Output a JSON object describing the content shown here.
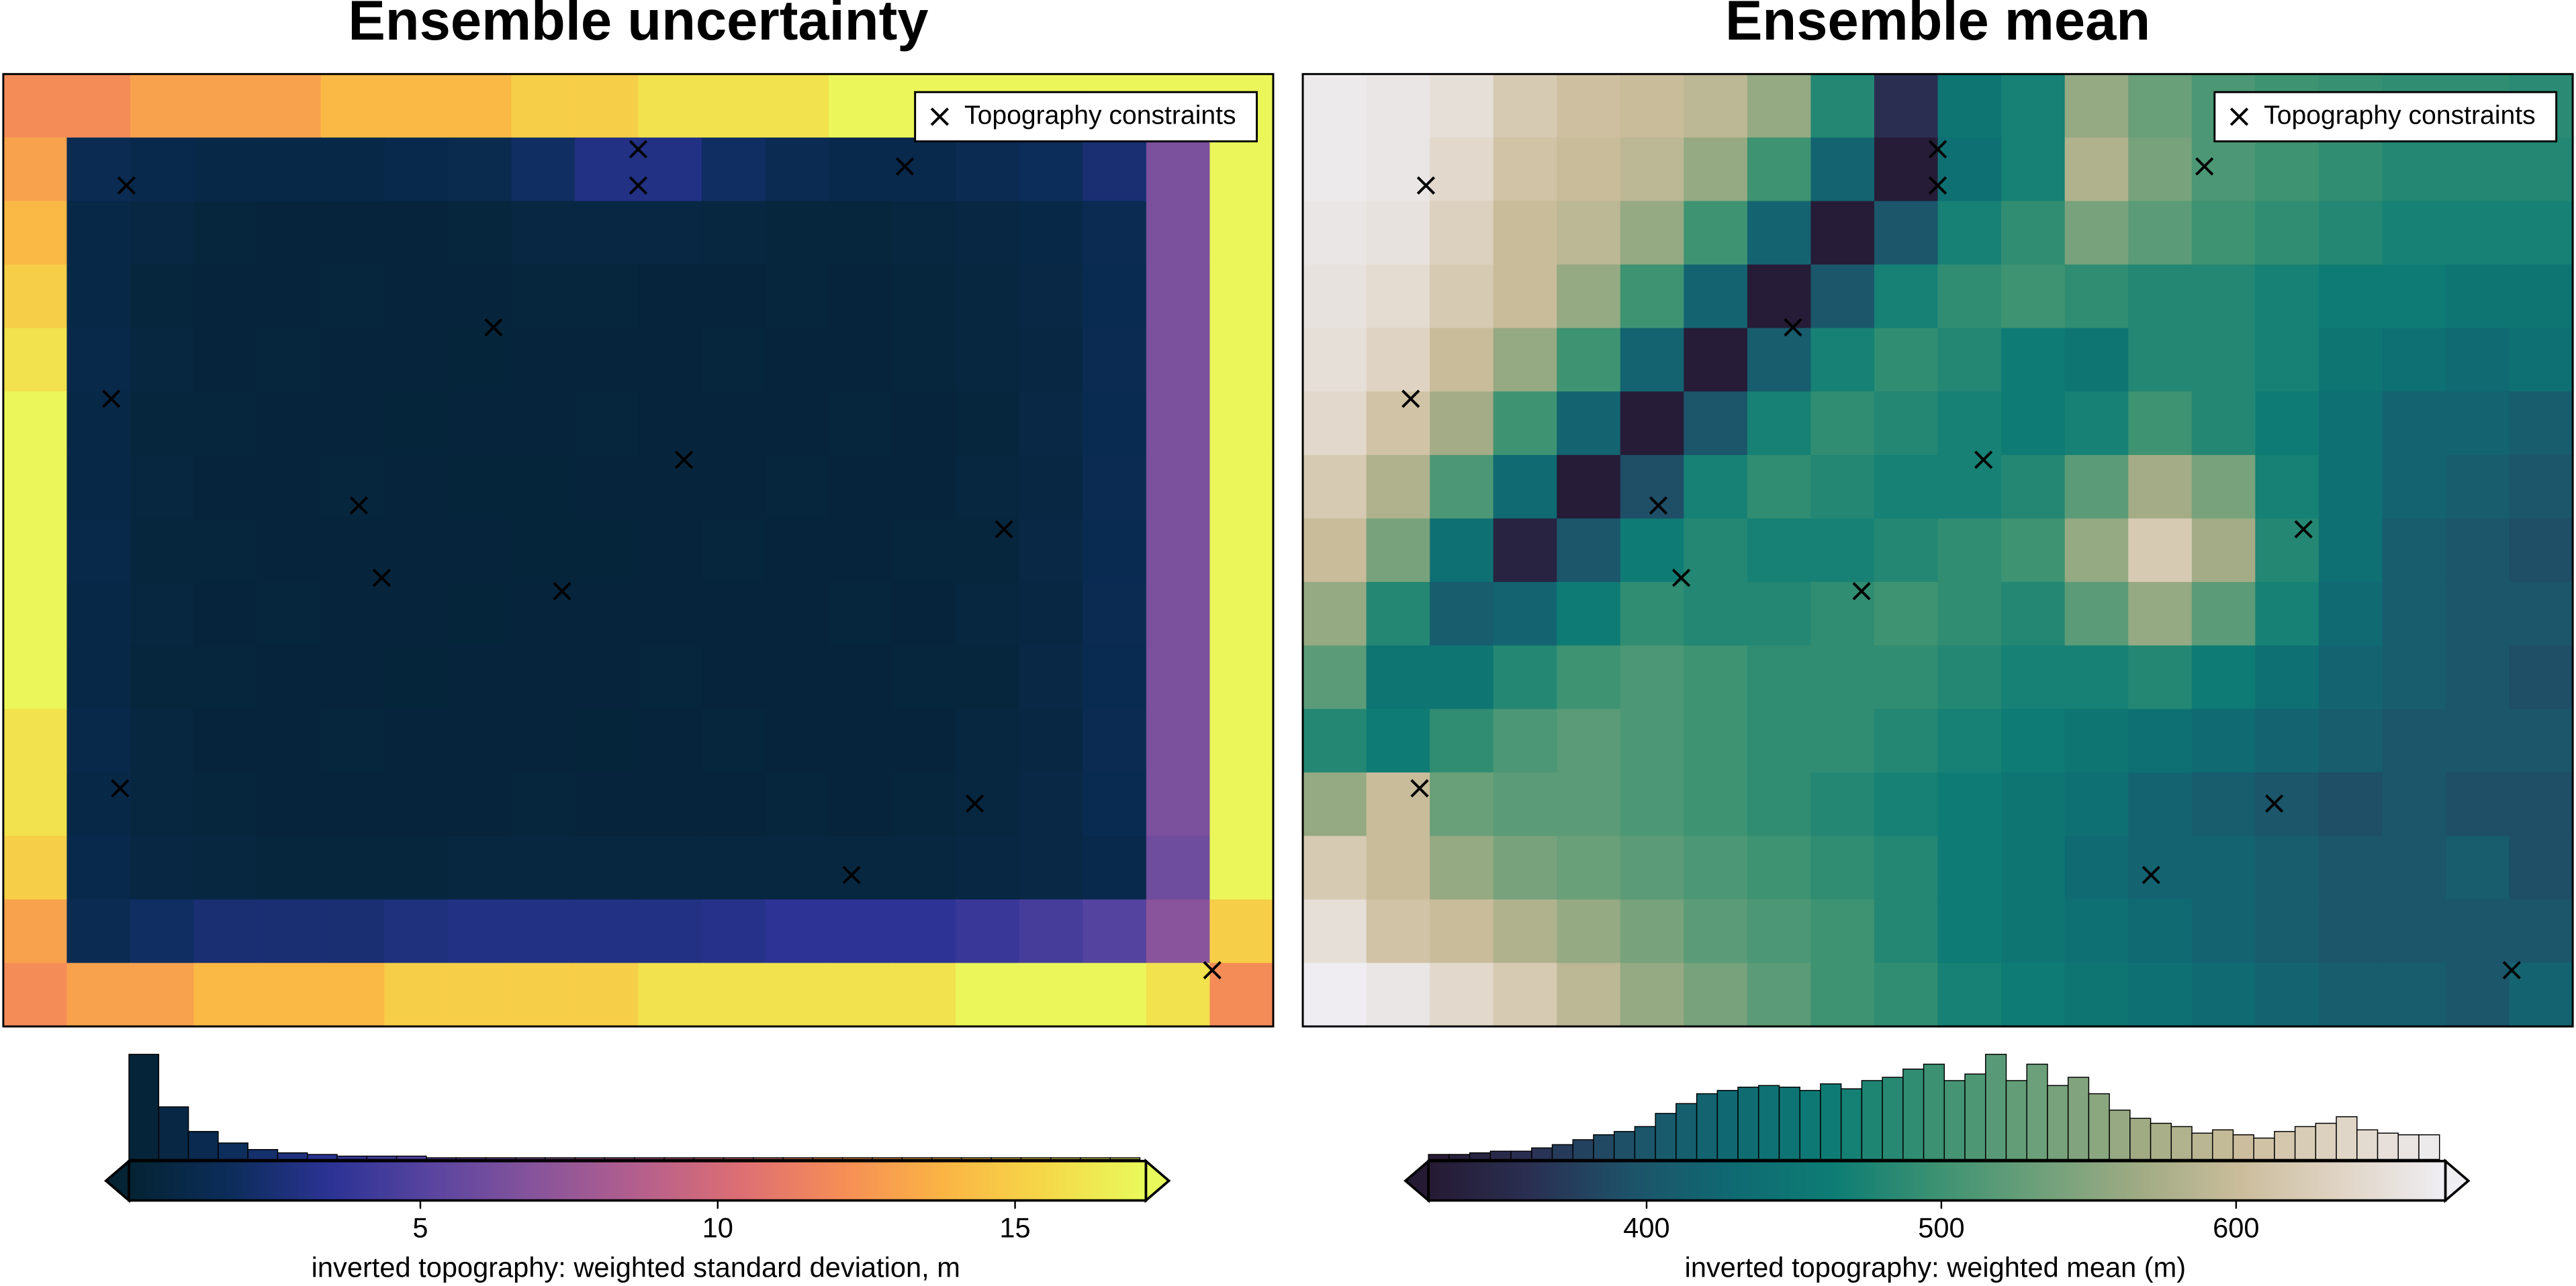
{
  "chart_data": [
    {
      "type": "heatmap",
      "title": "Ensemble uncertainty",
      "xlim": [
        0,
        100
      ],
      "ylim": [
        0,
        100
      ],
      "values": [
        [
          12,
          12,
          13,
          13,
          13,
          14,
          14,
          14,
          15,
          15,
          16,
          16,
          16,
          17,
          17,
          17,
          17,
          17,
          17,
          17
        ],
        [
          13,
          1.5,
          1.2,
          1.0,
          1.0,
          1.0,
          1.2,
          1.3,
          2.0,
          3.0,
          3.0,
          2.0,
          1.5,
          1.2,
          1.2,
          1.5,
          1.8,
          2.5,
          6.5,
          17
        ],
        [
          14,
          1.0,
          0.8,
          0.6,
          0.5,
          0.5,
          0.5,
          0.6,
          0.8,
          0.8,
          0.8,
          0.7,
          0.6,
          0.6,
          0.7,
          0.8,
          1.0,
          1.5,
          6.5,
          17
        ],
        [
          15,
          1.0,
          0.6,
          0.5,
          0.5,
          0.6,
          0.5,
          0.5,
          0.6,
          0.6,
          0.5,
          0.5,
          0.6,
          0.5,
          0.6,
          0.7,
          0.9,
          1.4,
          6.5,
          17
        ],
        [
          16,
          1.1,
          0.7,
          0.5,
          0.6,
          0.5,
          0.5,
          0.4,
          0.5,
          0.5,
          0.5,
          0.6,
          0.5,
          0.5,
          0.6,
          0.7,
          0.8,
          1.5,
          6.5,
          17
        ],
        [
          17,
          1.0,
          0.6,
          0.6,
          0.5,
          0.5,
          0.4,
          0.5,
          0.5,
          0.6,
          0.5,
          0.5,
          0.5,
          0.6,
          0.5,
          0.6,
          0.9,
          1.4,
          6.5,
          17
        ],
        [
          17,
          1.0,
          0.7,
          0.5,
          0.5,
          0.6,
          0.5,
          0.4,
          0.4,
          0.5,
          0.5,
          0.5,
          0.6,
          0.5,
          0.5,
          0.7,
          0.8,
          1.5,
          6.5,
          17
        ],
        [
          17,
          1.1,
          0.6,
          0.6,
          0.5,
          0.5,
          0.5,
          0.5,
          0.4,
          0.4,
          0.5,
          0.6,
          0.5,
          0.5,
          0.6,
          0.6,
          0.9,
          1.4,
          6.5,
          17
        ],
        [
          17,
          1.0,
          0.7,
          0.5,
          0.6,
          0.5,
          0.5,
          0.4,
          0.5,
          0.5,
          0.5,
          0.5,
          0.5,
          0.6,
          0.5,
          0.7,
          0.8,
          1.5,
          6.5,
          17
        ],
        [
          17,
          1.0,
          0.6,
          0.6,
          0.5,
          0.5,
          0.4,
          0.5,
          0.5,
          0.5,
          0.6,
          0.5,
          0.5,
          0.5,
          0.6,
          0.6,
          0.9,
          1.4,
          6.5,
          17
        ],
        [
          16,
          1.1,
          0.7,
          0.5,
          0.5,
          0.6,
          0.5,
          0.5,
          0.5,
          0.4,
          0.5,
          0.6,
          0.5,
          0.5,
          0.5,
          0.7,
          0.8,
          1.5,
          6.5,
          17
        ],
        [
          16,
          1.0,
          0.7,
          0.6,
          0.5,
          0.5,
          0.5,
          0.5,
          0.6,
          0.5,
          0.5,
          0.5,
          0.6,
          0.5,
          0.6,
          0.7,
          0.9,
          1.4,
          6.5,
          17
        ],
        [
          15,
          1.2,
          0.8,
          0.7,
          0.6,
          0.6,
          0.6,
          0.7,
          0.7,
          0.7,
          0.7,
          0.7,
          0.7,
          0.7,
          0.7,
          0.8,
          0.9,
          1.2,
          6.0,
          17
        ],
        [
          13,
          1.5,
          2.0,
          2.5,
          2.5,
          2.5,
          2.8,
          3.0,
          3.0,
          3.0,
          3.0,
          3.2,
          3.5,
          3.5,
          3.5,
          4.0,
          4.5,
          5.0,
          7.0,
          15
        ],
        [
          12,
          13,
          13,
          14,
          14,
          14,
          15,
          15,
          15,
          15,
          16,
          16,
          16,
          16,
          16,
          17,
          17,
          17,
          16,
          12
        ]
      ],
      "colorscale": [
        "#042333",
        "#0c2d5a",
        "#2c3395",
        "#5a45a0",
        "#87549b",
        "#b45f8d",
        "#dc6e74",
        "#f58d57",
        "#fbb444",
        "#f5d848",
        "#e8fa5b"
      ],
      "points": {
        "name": "Topography constraints",
        "x": [
          9.7,
          50.0,
          50.0,
          71.0,
          38.6,
          8.5,
          53.6,
          28.0,
          78.8,
          29.8,
          44.0,
          9.2,
          76.5,
          66.8,
          95.2
        ],
        "y": [
          88.3,
          92.1,
          88.3,
          90.3,
          73.4,
          65.9,
          59.5,
          54.7,
          52.2,
          47.1,
          45.7,
          25.0,
          23.4,
          15.9,
          5.9
        ]
      },
      "colorbar": {
        "label": "inverted topography: weighted standard deviation, m",
        "clim": [
          0.1,
          17.2
        ],
        "ticks": [
          5,
          10,
          15
        ]
      },
      "histogram": {
        "bins": [
          0.1,
          0.6,
          1.1,
          1.6,
          2.1,
          2.6,
          3.1,
          3.6,
          4.1,
          4.6,
          5.1,
          5.6,
          6.1,
          6.6,
          7.1,
          7.6,
          8.1,
          8.6,
          9.1,
          9.6,
          10.1,
          10.6,
          11.1,
          11.6,
          12.1,
          12.6,
          13.1,
          13.6,
          14.1,
          14.6,
          15.1,
          15.6,
          16.1,
          16.6,
          17.1
        ],
        "counts": [
          64,
          32,
          17,
          10,
          6,
          4,
          3,
          2,
          2,
          2,
          1,
          1,
          1,
          1,
          1,
          1,
          1,
          1,
          1,
          1,
          1,
          1,
          1,
          1,
          1,
          1,
          1,
          1,
          1,
          1,
          1,
          1,
          1,
          1
        ],
        "ylim": [
          0,
          66
        ]
      }
    },
    {
      "type": "heatmap",
      "title": "Ensemble mean",
      "xlim": [
        0,
        100
      ],
      "ylim": [
        0,
        100
      ],
      "values": [
        [
          665,
          660,
          650,
          620,
          605,
          600,
          590,
          560,
          480,
          360,
          450,
          470,
          560,
          530,
          510,
          500,
          495,
          490,
          490,
          485
        ],
        [
          665,
          660,
          640,
          610,
          600,
          590,
          560,
          500,
          420,
          330,
          440,
          470,
          580,
          540,
          510,
          500,
          490,
          480,
          480,
          480
        ],
        [
          660,
          655,
          630,
          600,
          590,
          560,
          500,
          420,
          330,
          400,
          470,
          490,
          540,
          520,
          500,
          490,
          480,
          470,
          470,
          470
        ],
        [
          655,
          645,
          620,
          600,
          560,
          500,
          420,
          330,
          400,
          470,
          490,
          500,
          490,
          480,
          480,
          470,
          460,
          460,
          450,
          450
        ],
        [
          650,
          635,
          600,
          560,
          500,
          420,
          330,
          410,
          470,
          490,
          480,
          460,
          450,
          480,
          480,
          470,
          450,
          440,
          430,
          440
        ],
        [
          640,
          610,
          570,
          500,
          420,
          330,
          400,
          470,
          490,
          480,
          470,
          460,
          470,
          500,
          480,
          460,
          440,
          420,
          420,
          410
        ],
        [
          620,
          580,
          510,
          430,
          330,
          390,
          470,
          490,
          480,
          470,
          470,
          480,
          520,
          570,
          540,
          470,
          440,
          420,
          410,
          400
        ],
        [
          600,
          540,
          440,
          340,
          400,
          460,
          480,
          470,
          470,
          480,
          490,
          500,
          560,
          620,
          570,
          480,
          440,
          410,
          400,
          390
        ],
        [
          560,
          480,
          410,
          420,
          460,
          490,
          480,
          480,
          490,
          500,
          490,
          480,
          520,
          560,
          520,
          470,
          430,
          410,
          400,
          400
        ],
        [
          520,
          450,
          450,
          480,
          500,
          510,
          500,
          490,
          490,
          490,
          480,
          470,
          470,
          480,
          460,
          440,
          420,
          410,
          400,
          390
        ],
        [
          480,
          460,
          490,
          510,
          520,
          510,
          500,
          490,
          490,
          480,
          470,
          460,
          450,
          440,
          430,
          420,
          410,
          400,
          400,
          400
        ],
        [
          560,
          600,
          530,
          520,
          520,
          510,
          500,
          490,
          480,
          470,
          460,
          450,
          440,
          420,
          410,
          400,
          390,
          400,
          390,
          390
        ],
        [
          620,
          600,
          560,
          540,
          530,
          520,
          510,
          500,
          490,
          480,
          460,
          450,
          430,
          420,
          420,
          410,
          400,
          400,
          410,
          390
        ],
        [
          650,
          610,
          600,
          580,
          560,
          540,
          520,
          510,
          500,
          480,
          460,
          450,
          440,
          430,
          420,
          410,
          400,
          400,
          400,
          400
        ],
        [
          670,
          660,
          640,
          620,
          590,
          560,
          540,
          520,
          500,
          490,
          470,
          460,
          450,
          440,
          430,
          420,
          410,
          410,
          400,
          420
        ]
      ],
      "colorscale": [
        "#251a33",
        "#2a2f52",
        "#1d536a",
        "#0f6a72",
        "#0e7d74",
        "#3c9272",
        "#6da07a",
        "#a0ab84",
        "#cbbd9c",
        "#e0d5c6",
        "#efeef3"
      ],
      "points": {
        "name": "Topography constraints",
        "x": [
          9.7,
          50.0,
          50.0,
          71.0,
          38.6,
          8.5,
          53.6,
          28.0,
          78.8,
          29.8,
          44.0,
          9.2,
          76.5,
          66.8,
          95.2
        ],
        "y": [
          88.3,
          92.1,
          88.3,
          90.3,
          73.4,
          65.9,
          59.5,
          54.7,
          52.2,
          47.1,
          45.7,
          25.0,
          23.4,
          15.9,
          5.9
        ]
      },
      "colorbar": {
        "label": "inverted topography: weighted mean (m)",
        "clim": [
          326,
          671
        ],
        "ticks": [
          400,
          500,
          600
        ]
      },
      "histogram": {
        "bins": [
          326,
          333,
          340,
          347,
          354,
          361,
          368,
          375,
          382,
          389,
          396,
          403,
          410,
          417,
          424,
          431,
          438,
          445,
          452,
          459,
          466,
          473,
          480,
          487,
          494,
          501,
          508,
          515,
          522,
          529,
          536,
          543,
          550,
          557,
          564,
          571,
          578,
          585,
          592,
          599,
          606,
          613,
          620,
          627,
          634,
          641,
          648,
          655,
          662,
          669
        ],
        "counts": [
          3,
          3,
          4,
          5,
          5,
          7,
          9,
          12,
          15,
          17,
          20,
          28,
          34,
          40,
          42,
          44,
          45,
          44,
          42,
          46,
          43,
          48,
          50,
          55,
          58,
          48,
          52,
          64,
          48,
          58,
          45,
          50,
          40,
          30,
          25,
          22,
          20,
          16,
          18,
          15,
          13,
          17,
          20,
          22,
          26,
          18,
          16,
          15,
          15
        ],
        "ylim": [
          0,
          66
        ]
      }
    }
  ]
}
